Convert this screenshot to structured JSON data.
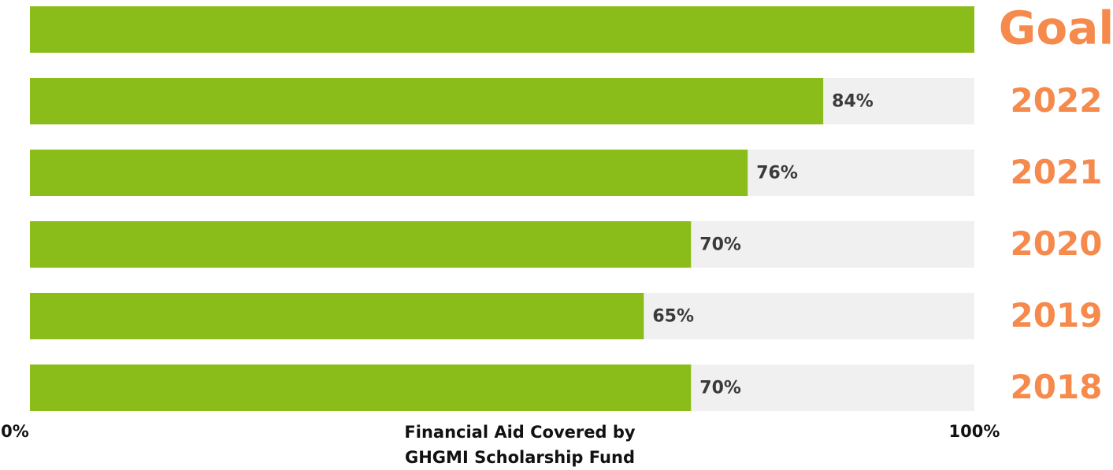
{
  "chart_data": {
    "type": "hbar",
    "categories": [
      "Goal",
      "2022",
      "2021",
      "2020",
      "2019",
      "2018"
    ],
    "values": [
      100,
      84,
      76,
      70,
      65,
      70
    ],
    "value_labels": [
      null,
      "84%",
      "76%",
      "70%",
      "65%",
      "70%"
    ],
    "color": "#8abd1a",
    "track_color": "#f0f0f0",
    "category_color": "#f68a4c",
    "xlim": [
      0,
      100
    ],
    "xticks": [
      {
        "value": 0,
        "label": "0%"
      },
      {
        "value": 100,
        "label": "100%"
      }
    ],
    "xlabel": "Financial Aid Covered by GHGMI Scholarship Fund"
  }
}
